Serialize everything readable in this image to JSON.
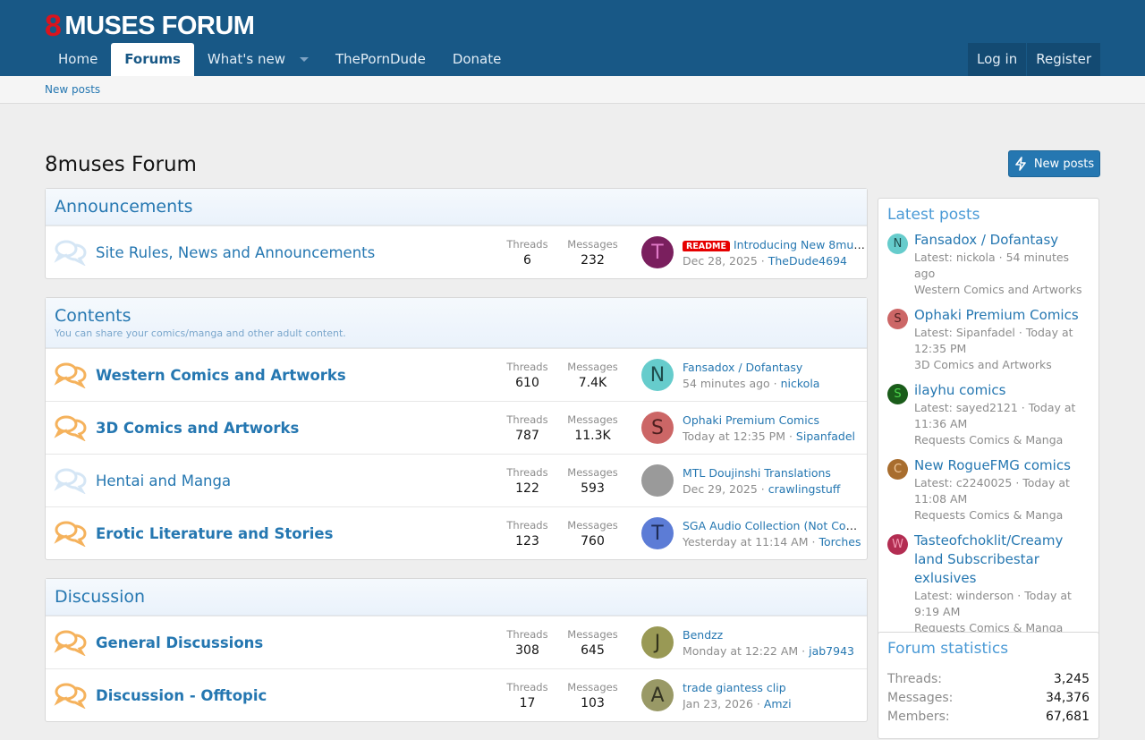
{
  "header": {
    "logo": "8muses forum",
    "logo_mark": "8",
    "logo_text": "MUSES FORUM",
    "nav": [
      {
        "label": "Home"
      },
      {
        "label": "Forums",
        "active": true
      },
      {
        "label": "What's new",
        "dropdown": true
      },
      {
        "label": "ThePornDude"
      },
      {
        "label": "Donate"
      }
    ],
    "login": "Log in",
    "register": "Register"
  },
  "subnav": {
    "new_posts": "New posts"
  },
  "page": {
    "title": "8muses Forum",
    "new_posts_button": "New posts"
  },
  "colors": {
    "brand": "#185886",
    "link": "#2577b1",
    "unread_icon": "#f5b25c",
    "read_icon": "#d5e6f5"
  },
  "categories": [
    {
      "title": "Announcements",
      "nodes": [
        {
          "title": "Site Rules, News and Announcements",
          "unread": false,
          "threads": "6",
          "messages": "232",
          "last": {
            "badge": "README",
            "title": "Introducing New 8muses ...",
            "date": "Dec 28, 2025",
            "user": "TheDude4694",
            "avatar_letter": "T",
            "avatar_bg": "#7a1f5e",
            "avatar_fg": "#e07ac8"
          }
        }
      ]
    },
    {
      "title": "Contents",
      "description": "You can share your comics/manga and other adult content.",
      "nodes": [
        {
          "title": "Western Comics and Artworks",
          "unread": true,
          "threads": "610",
          "messages": "7.4K",
          "last": {
            "title": "Fansadox / Dofantasy",
            "date": "54 minutes ago",
            "user": "nickola",
            "avatar_letter": "N",
            "avatar_bg": "#66cccc",
            "avatar_fg": "#1f4d4d"
          }
        },
        {
          "title": "3D Comics and Artworks",
          "unread": true,
          "threads": "787",
          "messages": "11.3K",
          "last": {
            "title": "Ophaki Premium Comics",
            "date": "Today at 12:35 PM",
            "user": "Sipanfadel",
            "avatar_letter": "S",
            "avatar_bg": "#cc6666",
            "avatar_fg": "#4d1f1f"
          }
        },
        {
          "title": "Hentai and Manga",
          "unread": false,
          "threads": "122",
          "messages": "593",
          "last": {
            "title": "MTL Doujinshi Translations",
            "date": "Dec 29, 2025",
            "user": "crawlingstuff",
            "avatar_letter": "",
            "avatar_bg": "#9a9a9a",
            "avatar_fg": "#fff"
          }
        },
        {
          "title": "Erotic Literature and Stories",
          "unread": true,
          "threads": "123",
          "messages": "760",
          "last": {
            "title": "SGA Audio Collection (Not Complet...",
            "date": "Yesterday at 11:14 AM",
            "user": "Torches",
            "avatar_letter": "T",
            "avatar_bg": "#5c7cd6",
            "avatar_fg": "#1f2d57"
          }
        }
      ]
    },
    {
      "title": "Discussion",
      "nodes": [
        {
          "title": "General Discussions",
          "unread": true,
          "threads": "308",
          "messages": "645",
          "last": {
            "title": "Bendzz",
            "date": "Monday at 12:22 AM",
            "user": "jab7943",
            "avatar_letter": "J",
            "avatar_bg": "#999955",
            "avatar_fg": "#33331c"
          }
        },
        {
          "title": "Discussion - Offtopic",
          "unread": true,
          "threads": "17",
          "messages": "103",
          "last": {
            "title": "trade giantess clip",
            "date": "Jan 23, 2026",
            "user": "Amzi",
            "avatar_letter": "A",
            "avatar_bg": "#999966",
            "avatar_fg": "#333322"
          }
        }
      ]
    }
  ],
  "labels": {
    "threads": "Threads",
    "messages": "Messages"
  },
  "latest_posts": {
    "title": "Latest posts",
    "items": [
      {
        "title": "Fansadox / Dofantasy",
        "meta": "Latest: nickola · 54 minutes ago",
        "forum": "Western Comics and Artworks",
        "avatar_letter": "N",
        "avatar_bg": "#66cccc",
        "avatar_fg": "#1f4d4d"
      },
      {
        "title": "Ophaki Premium Comics",
        "meta": "Latest: Sipanfadel · Today at 12:35 PM",
        "forum": "3D Comics and Artworks",
        "avatar_letter": "S",
        "avatar_bg": "#cc6666",
        "avatar_fg": "#4d1f1f"
      },
      {
        "title": "ilayhu comics",
        "meta": "Latest: sayed2121 · Today at 11:36 AM",
        "forum": "Requests Comics & Manga",
        "avatar_letter": "S",
        "avatar_bg": "#1a5c1a",
        "avatar_fg": "#4dd64d"
      },
      {
        "title": "New RogueFMG comics",
        "meta": "Latest: c2240025 · Today at 11:08 AM",
        "forum": "Requests Comics & Manga",
        "avatar_letter": "C",
        "avatar_bg": "#a86d2e",
        "avatar_fg": "#f0c89a"
      },
      {
        "title": "Tasteofchoklit/Creamy land Subscribestar exlusives",
        "meta": "Latest: winderson · Today at 9:19 AM",
        "forum": "Requests Comics & Manga",
        "avatar_letter": "W",
        "avatar_bg": "#b32d52",
        "avatar_fg": "#f29ab3"
      }
    ]
  },
  "forum_statistics": {
    "title": "Forum statistics",
    "rows": [
      {
        "label": "Threads:",
        "value": "3,245"
      },
      {
        "label": "Messages:",
        "value": "34,376"
      },
      {
        "label": "Members:",
        "value": "67,681"
      }
    ]
  }
}
